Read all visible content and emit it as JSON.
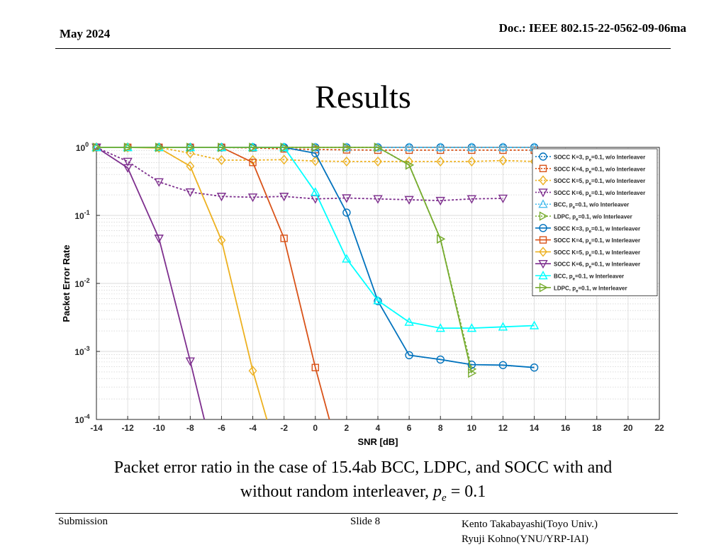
{
  "header": {
    "date": "May 2024",
    "doc": "Doc.: IEEE 802.15-22-0562-09-06ma"
  },
  "title": "Results",
  "caption": {
    "line1": "Packet error ratio in the case of 15.4ab BCC, LDPC, and SOCC with and",
    "line2_text": "without random interleaver, ",
    "line2_math": "p",
    "line2_sub": "e",
    "line2_rest": " = 0.1"
  },
  "footer": {
    "left": "Submission",
    "center": "Slide 8",
    "right1": "Kento Takabayashi(Toyo Univ.)",
    "right2": "Ryuji Kohno(YNU/YRP-IAI)"
  },
  "chart_data": {
    "type": "line",
    "title": "",
    "xlabel": "SNR [dB]",
    "ylabel": "Packet Error Rate",
    "xlim": [
      -14,
      22
    ],
    "ylim": [
      0.0001,
      1
    ],
    "yscale": "log",
    "grid": true,
    "legend_position": "top-right",
    "xticks": [
      -14,
      -12,
      -10,
      -8,
      -6,
      -4,
      -2,
      0,
      2,
      4,
      6,
      8,
      10,
      12,
      14,
      16,
      18,
      20,
      22
    ],
    "yticks": [
      {
        "base": "10",
        "exp": "0",
        "value": 1
      },
      {
        "base": "10",
        "exp": "-1",
        "value": 0.1
      },
      {
        "base": "10",
        "exp": "-2",
        "value": 0.01
      },
      {
        "base": "10",
        "exp": "-3",
        "value": 0.001
      },
      {
        "base": "10",
        "exp": "-4",
        "value": 0.0001
      }
    ],
    "series": [
      {
        "name": "SOCC K=3, p_e=0.1, w/o Interleaver",
        "legend_main": "SOCC K=3, p",
        "legend_sub": "e",
        "legend_rest": "=0.1, w/o Interleaver",
        "color": "#0072BD",
        "marker": "circle",
        "dashed": true,
        "x": [
          -14,
          -12,
          -10,
          -8,
          -6,
          -4,
          -2,
          0,
          2,
          4,
          6,
          8,
          10,
          12,
          14
        ],
        "y": [
          1,
          1,
          1,
          1,
          1,
          1,
          1,
          1,
          1,
          1,
          1,
          1,
          1,
          1,
          1
        ]
      },
      {
        "name": "SOCC K=4, p_e=0.1, w/o Interleaver",
        "legend_main": "SOCC K=4, p",
        "legend_sub": "e",
        "legend_rest": "=0.1, w/o Interleaver",
        "color": "#D95319",
        "marker": "square",
        "dashed": true,
        "x": [
          -14,
          -12,
          -10,
          -8,
          -6,
          -4,
          -2,
          0,
          2,
          4,
          6,
          8,
          10,
          12,
          14
        ],
        "y": [
          1,
          1,
          1,
          1,
          1,
          0.98,
          0.95,
          0.93,
          0.92,
          0.91,
          0.91,
          0.91,
          0.91,
          0.91,
          0.91
        ]
      },
      {
        "name": "SOCC K=5, p_e=0.1, w/o Interleaver",
        "legend_main": "SOCC K=5, p",
        "legend_sub": "e",
        "legend_rest": "=0.1, w/o Interleaver",
        "color": "#EDB120",
        "marker": "diamond",
        "dashed": true,
        "x": [
          -14,
          -12,
          -10,
          -8,
          -6,
          -4,
          -2,
          0,
          2,
          4,
          6,
          8,
          10,
          12,
          14
        ],
        "y": [
          1,
          1,
          1,
          0.82,
          0.65,
          0.65,
          0.66,
          0.63,
          0.62,
          0.62,
          0.62,
          0.62,
          0.62,
          0.64,
          0.62
        ]
      },
      {
        "name": "SOCC K=6, p_e=0.1, w/o Interleaver",
        "legend_main": "SOCC K=6, p",
        "legend_sub": "e",
        "legend_rest": "=0.1, w/o Interleaver",
        "color": "#7E2F8E",
        "marker": "triangle-down",
        "dashed": true,
        "x": [
          -14,
          -12,
          -10,
          -8,
          -6,
          -4,
          -2,
          0,
          2,
          4,
          6,
          8,
          10,
          12
        ],
        "y": [
          1,
          0.62,
          0.31,
          0.22,
          0.19,
          0.185,
          0.19,
          0.175,
          0.18,
          0.175,
          0.17,
          0.165,
          0.175,
          0.178
        ]
      },
      {
        "name": "BCC, p_e=0.1, w/o Interleaver",
        "legend_main": "BCC, p",
        "legend_sub": "e",
        "legend_rest": "=0.1, w/o Interleaver",
        "color": "#4DBEEE",
        "marker": "triangle-up",
        "dashed": true,
        "x": [
          -14,
          -12,
          -10,
          -8,
          -6,
          -4,
          -2,
          0,
          2,
          4,
          6,
          8,
          10,
          12,
          14
        ],
        "y": [
          1,
          1,
          1,
          1,
          1,
          1,
          1,
          1,
          1,
          1,
          1,
          1,
          1,
          1,
          1
        ]
      },
      {
        "name": "LDPC, p_e=0.1, w/o Interleaver",
        "legend_main": "LDPC, p",
        "legend_sub": "e",
        "legend_rest": "=0.1, w/o Interleaver",
        "color": "#77AC30",
        "marker": "triangle-right",
        "dashed": true,
        "x": [
          -14,
          -12,
          -10,
          -8,
          -6,
          -4,
          -2,
          0,
          2,
          4,
          6,
          8,
          10
        ],
        "y": [
          1,
          1,
          1,
          1,
          1,
          1,
          1,
          1,
          1,
          1,
          0.55,
          0.045,
          0.00055
        ]
      },
      {
        "name": "SOCC K=3, p_e=0.1, w Interleaver",
        "legend_main": "SOCC K=3, p",
        "legend_sub": "e",
        "legend_rest": "=0.1, w Interleaver",
        "color": "#0072BD",
        "marker": "circle",
        "dashed": false,
        "x": [
          -14,
          -12,
          -10,
          -8,
          -6,
          -4,
          -2,
          0,
          2,
          4,
          6,
          8,
          10,
          12,
          14
        ],
        "y": [
          1,
          1,
          1,
          1,
          1,
          1,
          1,
          0.82,
          0.11,
          0.0055,
          0.00088,
          0.00076,
          0.00064,
          0.00063,
          0.00058
        ]
      },
      {
        "name": "SOCC K=4, p_e=0.1, w Interleaver",
        "legend_main": "SOCC K=4, p",
        "legend_sub": "e",
        "legend_rest": "=0.1, w Interleaver",
        "color": "#D95319",
        "marker": "square",
        "dashed": false,
        "x": [
          -14,
          -12,
          -10,
          -8,
          -6,
          -4,
          -2,
          0,
          0.9
        ],
        "y": [
          1,
          1,
          1,
          1,
          1,
          0.6,
          0.046,
          0.00058,
          0.0001
        ]
      },
      {
        "name": "SOCC K=5, p_e=0.1, w Interleaver",
        "legend_main": "SOCC K=5, p",
        "legend_sub": "e",
        "legend_rest": "=0.1, w Interleaver",
        "color": "#EDB120",
        "marker": "diamond",
        "dashed": false,
        "x": [
          -14,
          -12,
          -10,
          -8,
          -6,
          -4,
          -3.1
        ],
        "y": [
          1,
          1,
          0.98,
          0.53,
          0.043,
          0.00052,
          0.0001
        ]
      },
      {
        "name": "SOCC K=6, p_e=0.1, w Interleaver",
        "legend_main": "SOCC K=6, p",
        "legend_sub": "e",
        "legend_rest": "=0.1, w Interleaver",
        "color": "#7E2F8E",
        "marker": "triangle-down",
        "dashed": false,
        "x": [
          -14,
          -12,
          -10,
          -8,
          -7.1
        ],
        "y": [
          1,
          0.5,
          0.046,
          0.00072,
          0.0001
        ]
      },
      {
        "name": "BCC, p_e=0.1, w Interleaver",
        "legend_main": "BCC, p",
        "legend_sub": "e",
        "legend_rest": "=0.1, w Interleaver",
        "color": "#00FFFF",
        "marker": "triangle-up",
        "dashed": false,
        "x": [
          -14,
          -12,
          -10,
          -8,
          -6,
          -4,
          -2,
          0,
          2,
          4,
          6,
          8,
          10,
          12,
          14
        ],
        "y": [
          1,
          1,
          1,
          1,
          1,
          1,
          1,
          0.22,
          0.023,
          0.0056,
          0.0027,
          0.0022,
          0.0022,
          0.0023,
          0.0024
        ]
      },
      {
        "name": "LDPC, p_e=0.1, w Interleaver",
        "legend_main": "LDPC, p",
        "legend_sub": "e",
        "legend_rest": "=0.1, w Interleaver",
        "color": "#77AC30",
        "marker": "triangle-right",
        "dashed": false,
        "x": [
          -14,
          -12,
          -10,
          -8,
          -6,
          -4,
          -2,
          0,
          2,
          4,
          6,
          8,
          10
        ],
        "y": [
          1,
          1,
          1,
          1,
          1,
          1,
          1,
          1,
          1,
          1,
          0.55,
          0.045,
          0.00048
        ]
      }
    ]
  }
}
